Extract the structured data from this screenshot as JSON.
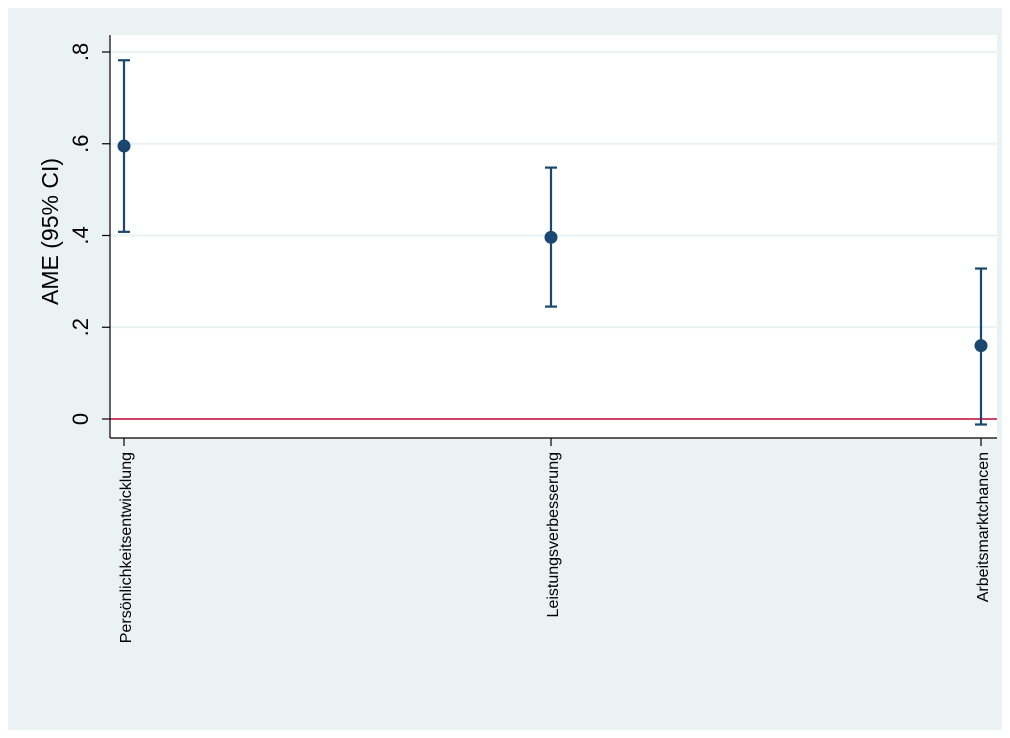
{
  "colors": {
    "outer_background": "#eaf2f3",
    "plot_background": "#ffffff",
    "gridline": "#eaf2f3",
    "marker": "#1a476f",
    "reference_line": "#c10534",
    "axis": "#000000"
  },
  "chart_data": {
    "type": "scatter",
    "subtype": "point-estimate with 95% CI error bars",
    "ylabel": "AME (95% CI)",
    "xlabel": "",
    "categories": [
      "Persönlichkeitsentwicklung",
      "Leistungsverbesserung",
      "Arbeitsmarktchancen"
    ],
    "estimates": [
      0.595,
      0.396,
      0.16
    ],
    "ci_lower": [
      0.408,
      0.245,
      -0.012
    ],
    "ci_upper": [
      0.782,
      0.548,
      0.328
    ],
    "ylim": [
      -0.04,
      0.85
    ],
    "yticks": [
      0,
      0.2,
      0.4,
      0.6,
      0.8
    ],
    "ytick_labels": [
      "0",
      ".2",
      ".4",
      ".6",
      ".8"
    ],
    "reference_line": 0,
    "grid": true,
    "legend": "none"
  }
}
